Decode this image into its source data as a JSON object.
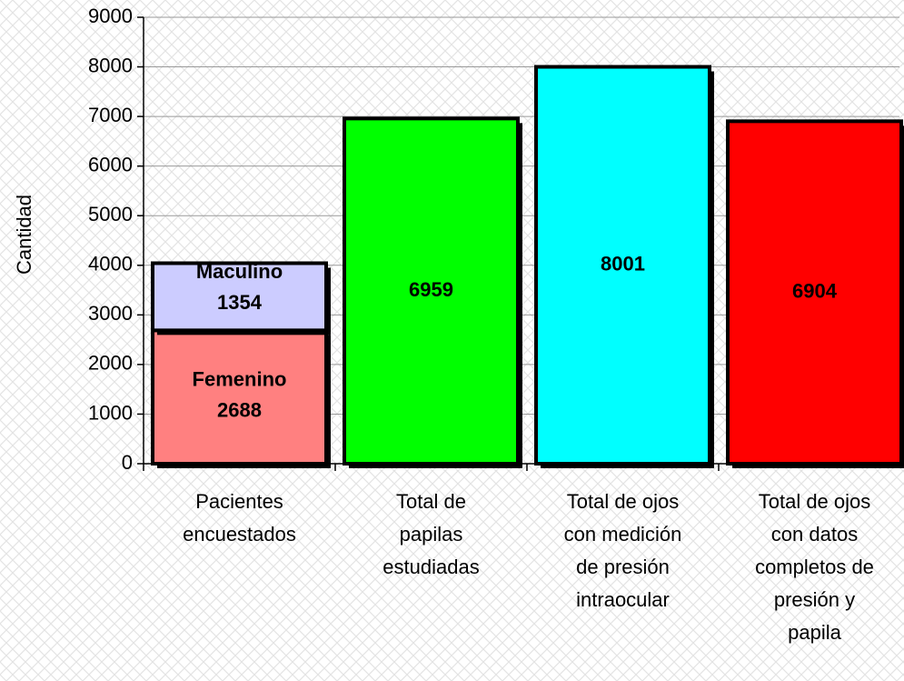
{
  "chart_data": {
    "type": "stacked-bar",
    "y_label": "Cantidad",
    "categories": [
      [
        "Pacientes",
        "encuestados"
      ],
      [
        "Total de",
        "papilas",
        "estudiadas"
      ],
      [
        "Total de ojos",
        "con medición",
        "de presión",
        "intraocular"
      ],
      [
        "Total de ojos",
        "con datos",
        "completos de",
        "presión y",
        "papila"
      ]
    ],
    "series": [
      {
        "name": "Femenino",
        "color": "#ff8080",
        "label_color": "#000000",
        "values": [
          2688,
          null,
          null,
          null
        ]
      },
      {
        "name": "Maculino",
        "color": "#ccccff",
        "label_color": "#000000",
        "values": [
          1354,
          null,
          null,
          null
        ]
      },
      {
        "color": "#00ff00",
        "label_color": "#000000",
        "values": [
          null,
          6959,
          null,
          null
        ]
      },
      {
        "color": "#00ffff",
        "label_color": "#000000",
        "values": [
          null,
          null,
          8001,
          null
        ]
      },
      {
        "color": "#ff0000",
        "label_color": "#ffffff",
        "values": [
          null,
          null,
          null,
          6904
        ]
      }
    ],
    "ylim": [
      0,
      9000
    ],
    "yticks": [
      0,
      1000,
      2000,
      3000,
      4000,
      5000,
      6000,
      7000,
      8000,
      9000
    ],
    "grid": true
  }
}
